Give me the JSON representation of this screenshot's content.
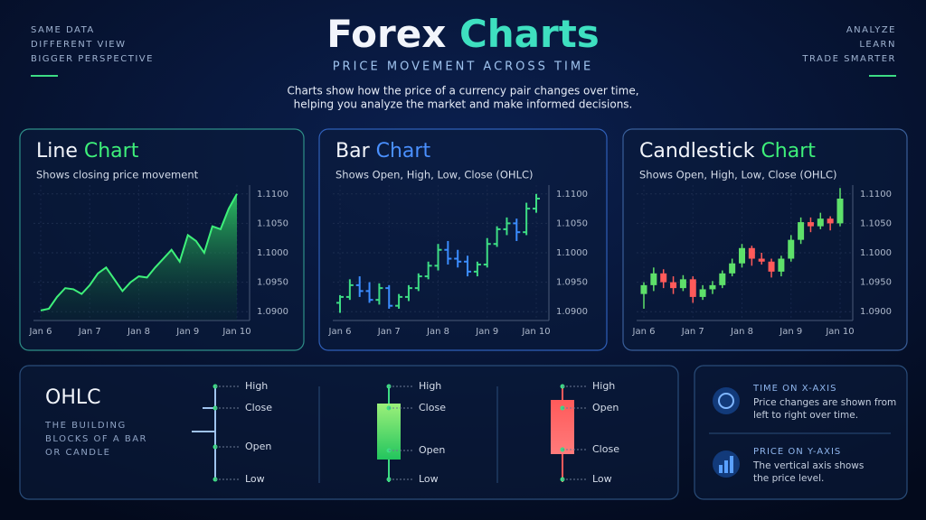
{
  "header": {
    "left_lines": [
      "SAME DATA",
      "DIFFERENT VIEW",
      "BIGGER PERSPECTIVE"
    ],
    "right_lines": [
      "ANALYZE",
      "LEARN",
      "TRADE SMARTER"
    ],
    "title": "Forex",
    "title_accent": "Charts",
    "subtitle": "PRICE MOVEMENT ACROSS TIME",
    "description": [
      "Charts show how the price of a currency pair changes over time,",
      "helping you analyze the market and make informed decisions."
    ]
  },
  "chart_data": [
    {
      "type": "line",
      "title": "Line",
      "title_accent": "Chart",
      "subtitle": "Shows closing price movement",
      "color": "#3ef07a",
      "grid": true,
      "categories": [
        "Jan 6",
        null,
        null,
        null,
        null,
        null,
        "Jan 7",
        null,
        null,
        null,
        null,
        null,
        "Jan 8",
        null,
        null,
        null,
        null,
        null,
        "Jan 9",
        null,
        null,
        null,
        null,
        null,
        "Jan 10"
      ],
      "values": [
        1.0902,
        1.0905,
        1.0925,
        1.094,
        1.0938,
        1.093,
        1.0945,
        1.0965,
        1.0975,
        1.0955,
        1.0935,
        1.095,
        1.096,
        1.0958,
        1.0975,
        1.099,
        1.1005,
        1.0985,
        1.103,
        1.102,
        1.1,
        1.1045,
        1.104,
        1.1075,
        1.11
      ],
      "ylim": [
        1.0885,
        1.1115
      ],
      "yticks": [
        {
          "value": 1.09,
          "label": "1.0900"
        },
        {
          "value": 1.095,
          "label": "1.0950"
        },
        {
          "value": 1.1,
          "label": "1.1000"
        },
        {
          "value": 1.105,
          "label": "1.1050"
        },
        {
          "value": 1.11,
          "label": "1.1100"
        }
      ]
    },
    {
      "type": "ohlc",
      "title": "Bar",
      "title_accent": "Chart",
      "subtitle": "Shows Open, High, Low, Close (OHLC)",
      "up_color": "#3ddc84",
      "down_color": "#3b8cff",
      "grid": true,
      "categories": [
        "Jan 6",
        null,
        null,
        null,
        null,
        "Jan 7",
        null,
        null,
        null,
        null,
        "Jan 8",
        null,
        null,
        null,
        null,
        "Jan 9",
        null,
        null,
        null,
        null,
        "Jan 10"
      ],
      "open": [
        1.0915,
        1.0925,
        1.0945,
        1.0935,
        1.092,
        1.094,
        1.091,
        1.0925,
        1.094,
        1.096,
        1.0978,
        1.1005,
        1.099,
        1.0985,
        1.0968,
        1.098,
        1.1015,
        1.104,
        1.105,
        1.1035,
        1.1075
      ],
      "high": [
        1.0928,
        1.0955,
        1.096,
        1.095,
        1.0948,
        1.0945,
        1.093,
        1.0945,
        1.0965,
        1.0985,
        1.1015,
        1.102,
        1.1005,
        1.0995,
        1.0985,
        1.1025,
        1.1045,
        1.106,
        1.1058,
        1.1085,
        1.11
      ],
      "low": [
        1.0898,
        1.092,
        1.0925,
        1.0915,
        1.0912,
        1.0905,
        1.0905,
        1.0918,
        1.0935,
        1.0955,
        1.097,
        1.098,
        1.0975,
        1.096,
        1.096,
        1.0975,
        1.101,
        1.103,
        1.102,
        1.103,
        1.1068
      ],
      "close": [
        1.0925,
        1.0945,
        1.0935,
        1.092,
        1.094,
        1.091,
        1.0925,
        1.094,
        1.096,
        1.0978,
        1.1005,
        1.099,
        1.0985,
        1.0968,
        1.098,
        1.1015,
        1.104,
        1.105,
        1.1035,
        1.1075,
        1.1092
      ],
      "ylim": [
        1.0885,
        1.1115
      ],
      "yticks": [
        {
          "value": 1.09,
          "label": "1.0900"
        },
        {
          "value": 1.095,
          "label": "1.0950"
        },
        {
          "value": 1.1,
          "label": "1.1000"
        },
        {
          "value": 1.105,
          "label": "1.1050"
        },
        {
          "value": 1.11,
          "label": "1.1100"
        }
      ]
    },
    {
      "type": "candlestick",
      "title": "Candlestick",
      "title_accent": "Chart",
      "subtitle": "Shows Open, High, Low, Close (OHLC)",
      "up_color": "#5ee06a",
      "down_color": "#ff5a5a",
      "grid": true,
      "categories": [
        "Jan 6",
        null,
        null,
        null,
        null,
        "Jan 7",
        null,
        null,
        null,
        null,
        "Jan 8",
        null,
        null,
        null,
        null,
        "Jan 9",
        null,
        null,
        null,
        null,
        "Jan 10"
      ],
      "open": [
        1.093,
        1.0945,
        1.0965,
        1.095,
        1.094,
        1.0955,
        1.0925,
        1.0938,
        1.0945,
        1.0965,
        1.0982,
        1.1008,
        1.099,
        1.0985,
        1.0968,
        1.099,
        1.1022,
        1.1052,
        1.1045,
        1.1058,
        1.105
      ],
      "high": [
        1.095,
        1.0975,
        1.0972,
        1.096,
        1.0962,
        1.096,
        1.0945,
        1.0952,
        1.097,
        1.099,
        1.1015,
        1.1012,
        1.1,
        1.099,
        1.0995,
        1.103,
        1.106,
        1.106,
        1.1068,
        1.1062,
        1.111
      ],
      "low": [
        1.0905,
        1.0935,
        1.094,
        1.093,
        1.0935,
        1.0915,
        1.092,
        1.093,
        1.094,
        1.096,
        1.0975,
        1.0978,
        1.098,
        1.0958,
        1.096,
        1.0985,
        1.1015,
        1.1035,
        1.104,
        1.1038,
        1.1045
      ],
      "close": [
        1.0945,
        1.0965,
        1.095,
        1.094,
        1.0955,
        1.0925,
        1.0938,
        1.0945,
        1.0965,
        1.0982,
        1.1008,
        1.099,
        1.0985,
        1.0968,
        1.099,
        1.1022,
        1.1052,
        1.1045,
        1.1058,
        1.105,
        1.1092
      ],
      "ylim": [
        1.0885,
        1.1115
      ],
      "yticks": [
        {
          "value": 1.09,
          "label": "1.0900"
        },
        {
          "value": 1.095,
          "label": "1.0950"
        },
        {
          "value": 1.1,
          "label": "1.1000"
        },
        {
          "value": 1.105,
          "label": "1.1050"
        },
        {
          "value": 1.11,
          "label": "1.1100"
        }
      ]
    }
  ],
  "ohlc": {
    "title": "OHLC",
    "description": [
      "THE BUILDING",
      "BLOCKS OF A BAR",
      "OR CANDLE"
    ],
    "bar_labels": [
      "High",
      "Close",
      "Open",
      "Low"
    ],
    "green_labels": [
      "High",
      "Close",
      "Open",
      "Low"
    ],
    "red_labels": [
      "High",
      "Open",
      "Close",
      "Low"
    ]
  },
  "info": [
    {
      "title": "TIME ON X-AXIS",
      "lines": [
        "Price changes are shown from",
        "left to right over time."
      ]
    },
    {
      "title": "PRICE ON Y-AXIS",
      "lines": [
        "The vertical axis shows",
        "the price level."
      ]
    }
  ]
}
